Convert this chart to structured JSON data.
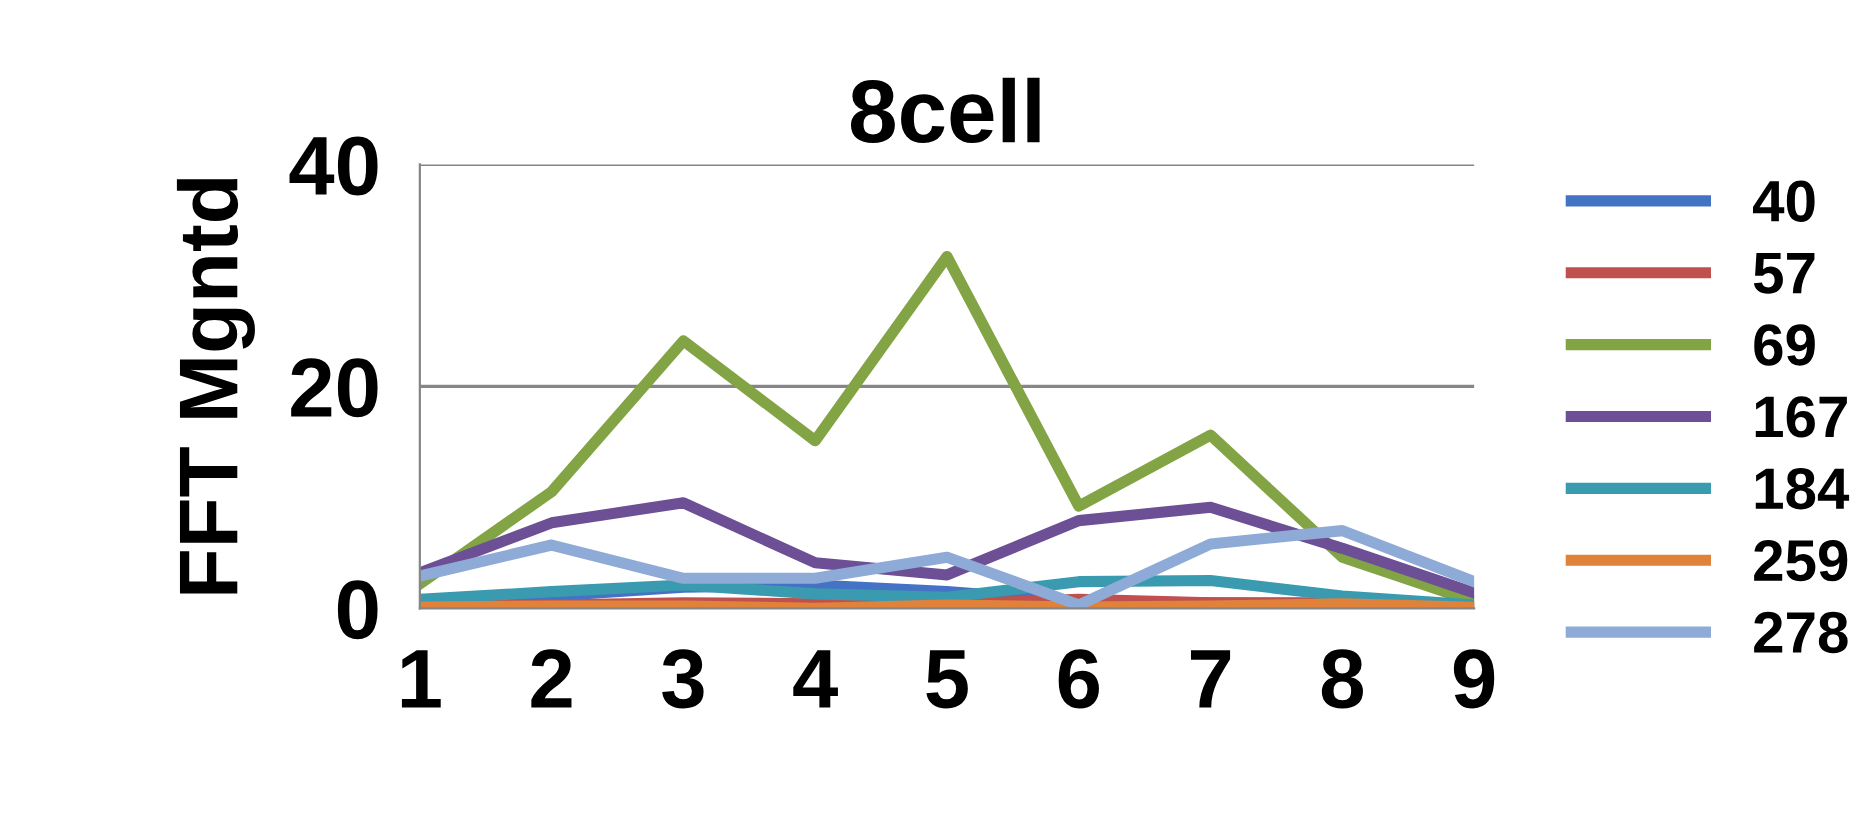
{
  "chart_data": {
    "type": "line",
    "title": "8cell",
    "ylabel": "FFT Mgntd",
    "categories": [
      "1",
      "2",
      "3",
      "4",
      "5",
      "6",
      "7",
      "8",
      "9"
    ],
    "series": [
      {
        "name": "40",
        "color": "#4472c4",
        "values": [
          0.6,
          1.1,
          1.9,
          2.1,
          1.5,
          0.6,
          0.5,
          0.5,
          null
        ]
      },
      {
        "name": "57",
        "color": "#c0504d",
        "values": [
          0.2,
          0.3,
          0.5,
          0.4,
          0.4,
          0.8,
          0.5,
          0.4,
          0.1
        ]
      },
      {
        "name": "69",
        "color": "#82a444",
        "values": [
          2.2,
          10.5,
          24.1,
          15.1,
          31.7,
          9.2,
          15.6,
          4.6,
          0.6
        ]
      },
      {
        "name": "167",
        "color": "#6c4f94",
        "values": [
          3.2,
          7.7,
          9.5,
          4.1,
          3.0,
          7.9,
          9.1,
          5.4,
          1.4
        ]
      },
      {
        "name": "184",
        "color": "#3a9bb0",
        "values": [
          0.8,
          1.5,
          2.1,
          1.3,
          1.0,
          2.4,
          2.5,
          1.1,
          0.3
        ]
      },
      {
        "name": "259",
        "color": "#e0823a",
        "values": [
          0.1,
          0.2,
          0.2,
          0.0,
          0.3,
          0.1,
          0.2,
          0.4,
          0.1
        ]
      },
      {
        "name": "278",
        "color": "#8eaad6",
        "values": [
          2.9,
          5.7,
          2.7,
          2.7,
          4.6,
          0.3,
          5.8,
          7.0,
          2.4
        ]
      }
    ],
    "ylim": [
      0,
      40
    ],
    "yticks": [
      0,
      20,
      40
    ],
    "grid": "y",
    "legend": "right",
    "marker": "none",
    "line_style": "solid"
  }
}
